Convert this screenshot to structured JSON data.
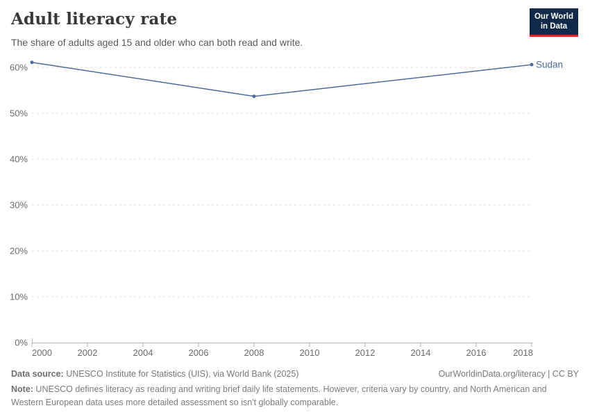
{
  "header": {
    "title": "Adult literacy rate",
    "subtitle": "The share of adults aged 15 and older who can both read and write.",
    "logo": {
      "line1": "Our World",
      "line2": "in Data"
    }
  },
  "chart_data": {
    "type": "line",
    "title": "Adult literacy rate",
    "x": [
      2000,
      2008,
      2018
    ],
    "series": [
      {
        "name": "Sudan",
        "color": "#4c6a9c",
        "values": [
          61.1,
          53.7,
          60.6
        ]
      }
    ],
    "xlabel": "",
    "ylabel": "",
    "y_unit": "%",
    "xlim": [
      2000,
      2018
    ],
    "ylim": [
      0,
      62
    ],
    "x_ticks": [
      2000,
      2002,
      2004,
      2006,
      2008,
      2010,
      2012,
      2014,
      2016,
      2018
    ],
    "y_ticks": [
      0,
      10,
      20,
      30,
      40,
      50,
      60
    ],
    "grid": "horizontal-dashed",
    "legend_position": "end-of-line-label"
  },
  "footer": {
    "datasource_label": "Data source:",
    "datasource_text": " UNESCO Institute for Statistics (UIS), via World Bank (2025)",
    "link_text": "OurWorldinData.org/literacy | CC BY",
    "note_label": "Note:",
    "note_text": " UNESCO defines literacy as reading and writing brief daily life statements. However, criteria vary by country, and North American and Western European data uses more detailed assessment so isn't globally comparable."
  },
  "colors": {
    "series_sudan": "#4c6a9c",
    "logo_background": "#11294b",
    "logo_bar": "#d2281e",
    "gridline": "#dbdbdb",
    "axis": "#b3b3b3",
    "tick_label": "#6b6b6b",
    "title_text": "#383838",
    "subtitle_text": "#595959",
    "footer_text": "#787878"
  }
}
